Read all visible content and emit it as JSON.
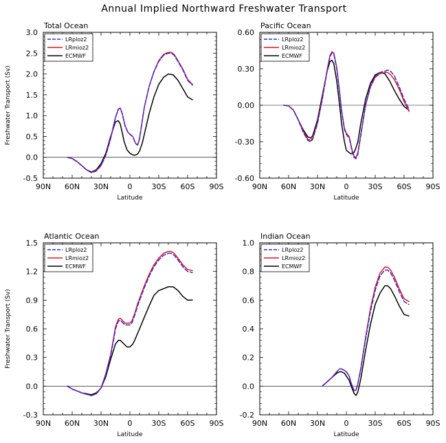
{
  "title": "Annual Implied Northward Freshwater Transport",
  "legend_entries": [
    {
      "name": "LRploz2",
      "color": "#2a2ad8",
      "dash": true
    },
    {
      "name": "LRmioz2",
      "color": "#e8141e",
      "dash": false
    },
    {
      "name": "ECMWF",
      "color": "#000000",
      "dash": false
    }
  ],
  "chart_data": [
    {
      "type": "line",
      "title": "Total Ocean",
      "xlabel": "Latitude",
      "ylabel": "Freshwater Transport (Sv)",
      "xlim": [
        -90,
        90
      ],
      "ylim": [
        -0.5,
        3.0
      ],
      "xticks": [
        -90,
        -60,
        -30,
        0,
        30,
        60,
        90
      ],
      "xtick_labels": [
        "90N",
        "60N",
        "30N",
        "0",
        "30S",
        "60S",
        "90S"
      ],
      "yticks": [
        -0.5,
        0.0,
        0.5,
        1.0,
        1.5,
        2.0,
        2.5,
        3.0
      ],
      "ytick_labels": [
        "-0.5",
        "0.0",
        "0.5",
        "1.0",
        "1.5",
        "2.0",
        "2.5",
        "3.0"
      ],
      "series": [
        {
          "name": "LRploz2",
          "x": [
            -65,
            -60,
            -55,
            -50,
            -45,
            -40,
            -35,
            -30,
            -25,
            -20,
            -15,
            -12,
            -10,
            -8,
            -5,
            -2,
            0,
            3,
            6,
            8,
            10,
            12,
            15,
            20,
            25,
            30,
            35,
            40,
            43,
            46,
            50,
            55,
            60,
            65
          ],
          "y": [
            0,
            -0.03,
            -0.1,
            -0.2,
            -0.3,
            -0.37,
            -0.33,
            -0.2,
            0.05,
            0.45,
            0.95,
            1.15,
            1.18,
            1.05,
            0.75,
            0.6,
            0.55,
            0.5,
            0.33,
            0.3,
            0.45,
            0.75,
            1.2,
            1.7,
            2.05,
            2.3,
            2.45,
            2.5,
            2.5,
            2.45,
            2.3,
            2.1,
            1.85,
            1.73
          ]
        },
        {
          "name": "LRmioz2",
          "x": [
            -65,
            -60,
            -55,
            -50,
            -45,
            -40,
            -35,
            -30,
            -25,
            -20,
            -15,
            -12,
            -10,
            -8,
            -5,
            -2,
            0,
            3,
            6,
            8,
            10,
            12,
            15,
            20,
            25,
            30,
            35,
            40,
            43,
            46,
            50,
            55,
            60,
            65
          ],
          "y": [
            0,
            -0.03,
            -0.1,
            -0.2,
            -0.3,
            -0.36,
            -0.32,
            -0.19,
            0.06,
            0.46,
            0.96,
            1.16,
            1.18,
            1.06,
            0.76,
            0.6,
            0.56,
            0.5,
            0.33,
            0.29,
            0.44,
            0.74,
            1.2,
            1.7,
            2.06,
            2.32,
            2.47,
            2.52,
            2.52,
            2.47,
            2.32,
            2.12,
            1.87,
            1.75
          ]
        },
        {
          "name": "ECMWF",
          "x": [
            -65,
            -60,
            -55,
            -50,
            -45,
            -40,
            -35,
            -30,
            -25,
            -20,
            -15,
            -12,
            -10,
            -8,
            -6,
            -3,
            0,
            3,
            5,
            8,
            10,
            13,
            16,
            20,
            25,
            30,
            35,
            40,
            45,
            50,
            55,
            60,
            65
          ],
          "y": [
            0,
            -0.03,
            -0.1,
            -0.2,
            -0.3,
            -0.35,
            -0.3,
            -0.15,
            0.1,
            0.5,
            0.85,
            0.88,
            0.8,
            0.6,
            0.38,
            0.18,
            0.1,
            0.06,
            0.05,
            0.08,
            0.15,
            0.35,
            0.65,
            1.05,
            1.45,
            1.75,
            1.92,
            2.0,
            1.98,
            1.85,
            1.65,
            1.45,
            1.38
          ]
        }
      ]
    },
    {
      "type": "line",
      "title": "Pacific Ocean",
      "xlabel": "Latitude",
      "ylabel": "",
      "xlim": [
        -90,
        90
      ],
      "ylim": [
        -0.6,
        0.6
      ],
      "xticks": [
        -90,
        -60,
        -30,
        0,
        30,
        60,
        90
      ],
      "xtick_labels": [
        "90N",
        "60N",
        "30N",
        "0",
        "30S",
        "60S",
        "90S"
      ],
      "yticks": [
        -0.6,
        -0.3,
        0.0,
        0.3,
        0.6
      ],
      "ytick_labels": [
        "-0.60",
        "-0.30",
        "0.00",
        "0.30",
        "0.60"
      ],
      "series": [
        {
          "name": "LRploz2",
          "x": [
            -65,
            -60,
            -55,
            -50,
            -45,
            -40,
            -37,
            -35,
            -30,
            -25,
            -20,
            -17,
            -15,
            -13,
            -10,
            -7,
            -5,
            -2,
            0,
            3,
            6,
            8,
            10,
            12,
            15,
            20,
            25,
            30,
            35,
            40,
            43,
            46,
            50,
            55,
            60,
            65
          ],
          "y": [
            0,
            -0.005,
            -0.04,
            -0.12,
            -0.22,
            -0.29,
            -0.3,
            -0.28,
            -0.15,
            0.05,
            0.28,
            0.4,
            0.43,
            0.42,
            0.3,
            0.1,
            -0.05,
            -0.2,
            -0.24,
            -0.27,
            -0.38,
            -0.43,
            -0.44,
            -0.4,
            -0.25,
            0.0,
            0.16,
            0.24,
            0.27,
            0.28,
            0.29,
            0.28,
            0.24,
            0.15,
            0.05,
            -0.03
          ]
        },
        {
          "name": "LRmioz2",
          "x": [
            -65,
            -60,
            -55,
            -50,
            -45,
            -40,
            -37,
            -35,
            -30,
            -25,
            -20,
            -17,
            -15,
            -13,
            -10,
            -7,
            -5,
            -2,
            0,
            3,
            6,
            8,
            10,
            12,
            15,
            20,
            25,
            30,
            35,
            40,
            43,
            46,
            50,
            55,
            60,
            65
          ],
          "y": [
            0,
            -0.005,
            -0.04,
            -0.12,
            -0.21,
            -0.28,
            -0.29,
            -0.27,
            -0.14,
            0.06,
            0.29,
            0.41,
            0.44,
            0.43,
            0.31,
            0.11,
            -0.04,
            -0.19,
            -0.23,
            -0.26,
            -0.37,
            -0.42,
            -0.43,
            -0.39,
            -0.24,
            0.0,
            0.15,
            0.23,
            0.26,
            0.27,
            0.27,
            0.25,
            0.21,
            0.13,
            0.03,
            -0.05
          ]
        },
        {
          "name": "ECMWF",
          "x": [
            -65,
            -60,
            -55,
            -50,
            -45,
            -40,
            -37,
            -35,
            -30,
            -25,
            -20,
            -17,
            -15,
            -13,
            -10,
            -7,
            -5,
            -2,
            0,
            3,
            5,
            8,
            10,
            12,
            15,
            20,
            25,
            30,
            35,
            40,
            45,
            50,
            55,
            60,
            65
          ],
          "y": [
            0,
            -0.005,
            -0.04,
            -0.12,
            -0.2,
            -0.26,
            -0.27,
            -0.25,
            -0.12,
            0.08,
            0.28,
            0.36,
            0.37,
            0.34,
            0.2,
            0.0,
            -0.15,
            -0.3,
            -0.37,
            -0.39,
            -0.4,
            -0.39,
            -0.35,
            -0.3,
            -0.15,
            0.05,
            0.18,
            0.25,
            0.27,
            0.26,
            0.2,
            0.12,
            0.05,
            -0.01,
            -0.04
          ]
        }
      ]
    },
    {
      "type": "line",
      "title": "Atlantic Ocean",
      "xlabel": "Latitude",
      "ylabel": "Freshwater Transport (Sv)",
      "xlim": [
        -90,
        90
      ],
      "ylim": [
        -0.3,
        1.5
      ],
      "xticks": [
        -90,
        -60,
        -30,
        0,
        30,
        60,
        90
      ],
      "xtick_labels": [
        "90N",
        "60N",
        "30N",
        "0",
        "30S",
        "60S",
        "90S"
      ],
      "yticks": [
        -0.3,
        0.0,
        0.3,
        0.6,
        0.9,
        1.2,
        1.5
      ],
      "ytick_labels": [
        "-0.3",
        "0.0",
        "0.3",
        "0.6",
        "0.9",
        "1.2",
        "1.5"
      ],
      "series": [
        {
          "name": "LRploz2",
          "x": [
            -65,
            -60,
            -55,
            -50,
            -45,
            -40,
            -35,
            -30,
            -25,
            -20,
            -17,
            -15,
            -12,
            -10,
            -7,
            -5,
            -2,
            0,
            2,
            5,
            8,
            12,
            15,
            20,
            25,
            30,
            35,
            40,
            43,
            46,
            50,
            55,
            60,
            65
          ],
          "y": [
            0,
            -0.03,
            -0.05,
            -0.07,
            -0.085,
            -0.1,
            -0.08,
            -0.02,
            0.12,
            0.32,
            0.48,
            0.6,
            0.68,
            0.69,
            0.66,
            0.64,
            0.64,
            0.64,
            0.66,
            0.74,
            0.84,
            0.95,
            1.03,
            1.15,
            1.25,
            1.32,
            1.37,
            1.39,
            1.39,
            1.37,
            1.32,
            1.25,
            1.2,
            1.19
          ]
        },
        {
          "name": "LRmioz2",
          "x": [
            -65,
            -60,
            -55,
            -50,
            -45,
            -40,
            -35,
            -30,
            -25,
            -20,
            -17,
            -15,
            -12,
            -10,
            -7,
            -5,
            -2,
            0,
            2,
            5,
            8,
            12,
            15,
            20,
            25,
            30,
            35,
            40,
            43,
            46,
            50,
            55,
            60,
            65
          ],
          "y": [
            0,
            -0.03,
            -0.05,
            -0.07,
            -0.085,
            -0.1,
            -0.08,
            -0.02,
            0.13,
            0.33,
            0.5,
            0.62,
            0.7,
            0.71,
            0.68,
            0.66,
            0.66,
            0.66,
            0.68,
            0.76,
            0.86,
            0.97,
            1.05,
            1.17,
            1.27,
            1.34,
            1.39,
            1.41,
            1.41,
            1.39,
            1.34,
            1.27,
            1.22,
            1.21
          ]
        },
        {
          "name": "ECMWF",
          "x": [
            -65,
            -60,
            -55,
            -50,
            -45,
            -40,
            -35,
            -30,
            -25,
            -20,
            -15,
            -12,
            -10,
            -8,
            -5,
            -3,
            0,
            3,
            5,
            10,
            15,
            20,
            25,
            30,
            35,
            40,
            45,
            50,
            55,
            60,
            65
          ],
          "y": [
            0,
            -0.03,
            -0.05,
            -0.07,
            -0.08,
            -0.09,
            -0.07,
            -0.02,
            0.1,
            0.28,
            0.44,
            0.48,
            0.48,
            0.46,
            0.43,
            0.41,
            0.41,
            0.44,
            0.48,
            0.6,
            0.72,
            0.84,
            0.95,
            1.0,
            1.02,
            1.04,
            1.04,
            1.0,
            0.94,
            0.9,
            0.9
          ]
        }
      ]
    },
    {
      "type": "line",
      "title": "Indian Ocean",
      "xlabel": "Latitude",
      "ylabel": "",
      "xlim": [
        -90,
        90
      ],
      "ylim": [
        -0.2,
        1.0
      ],
      "xticks": [
        -90,
        -60,
        -30,
        0,
        30,
        60,
        90
      ],
      "xtick_labels": [
        "90N",
        "60N",
        "30N",
        "0",
        "30S",
        "60S",
        "90S"
      ],
      "yticks": [
        -0.2,
        0.0,
        0.2,
        0.4,
        0.6,
        0.8,
        1.0
      ],
      "ytick_labels": [
        "-0.2",
        "0.0",
        "0.2",
        "0.4",
        "0.6",
        "0.8",
        "1.0"
      ],
      "series": [
        {
          "name": "LRploz2",
          "x": [
            -25,
            -20,
            -15,
            -10,
            -7,
            -5,
            -2,
            0,
            3,
            5,
            8,
            10,
            12,
            15,
            20,
            25,
            30,
            35,
            40,
            43,
            46,
            50,
            55,
            60,
            65
          ],
          "y": [
            0,
            0.03,
            0.06,
            0.1,
            0.12,
            0.12,
            0.11,
            0.1,
            0.07,
            0.02,
            -0.03,
            -0.03,
            0.02,
            0.12,
            0.33,
            0.52,
            0.67,
            0.77,
            0.81,
            0.81,
            0.79,
            0.74,
            0.66,
            0.59,
            0.57
          ]
        },
        {
          "name": "LRmioz2",
          "x": [
            -25,
            -20,
            -15,
            -10,
            -7,
            -5,
            -2,
            0,
            3,
            5,
            8,
            10,
            12,
            15,
            20,
            25,
            30,
            35,
            40,
            43,
            46,
            50,
            55,
            60,
            65
          ],
          "y": [
            0,
            0.03,
            0.06,
            0.1,
            0.12,
            0.12,
            0.11,
            0.1,
            0.07,
            0.02,
            -0.03,
            -0.03,
            0.02,
            0.12,
            0.34,
            0.54,
            0.69,
            0.79,
            0.83,
            0.83,
            0.81,
            0.76,
            0.68,
            0.61,
            0.59
          ]
        },
        {
          "name": "ECMWF",
          "x": [
            -25,
            -20,
            -15,
            -10,
            -7,
            -5,
            -2,
            0,
            3,
            5,
            8,
            10,
            12,
            15,
            20,
            25,
            30,
            35,
            40,
            43,
            46,
            50,
            55,
            60,
            65
          ],
          "y": [
            0,
            0.03,
            0.06,
            0.09,
            0.1,
            0.1,
            0.09,
            0.07,
            0.04,
            0.0,
            -0.05,
            -0.065,
            -0.04,
            0.05,
            0.25,
            0.43,
            0.57,
            0.65,
            0.7,
            0.7,
            0.68,
            0.63,
            0.56,
            0.5,
            0.49
          ]
        }
      ]
    }
  ]
}
